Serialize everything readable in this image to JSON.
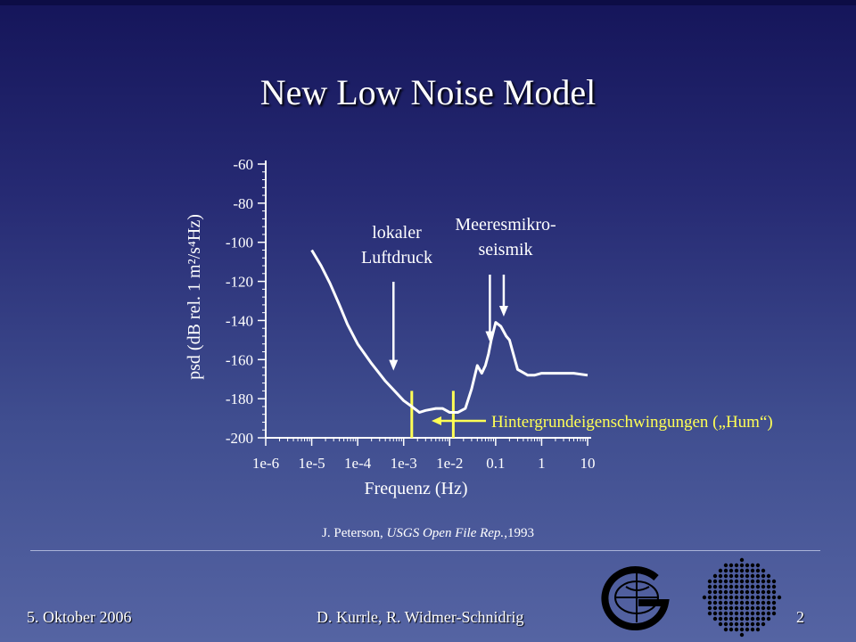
{
  "slide": {
    "title": "New Low Noise Model",
    "citation_author": "J. Peterson,",
    "citation_source": "USGS Open File Rep.",
    "citation_year": ",1993",
    "footer_date": "5. Oktober 2006",
    "footer_authors": "D. Kurrle, R. Widmer-Schnidrig",
    "footer_page": "2"
  },
  "chart_data": {
    "type": "line",
    "xscale": "log",
    "xlabel": "Frequenz (Hz)",
    "ylabel": "psd (dB rel. 1 m²/s⁴Hz)",
    "xlim": [
      1e-06,
      10
    ],
    "ylim": [
      -200,
      -60
    ],
    "xticks": [
      1e-06,
      1e-05,
      0.0001,
      0.001,
      0.01,
      0.1,
      1,
      10
    ],
    "xtick_labels": [
      "1e-6",
      "1e-5",
      "1e-4",
      "1e-3",
      "1e-2",
      "0.1",
      "1",
      "10"
    ],
    "yticks": [
      -60,
      -80,
      -100,
      -120,
      -140,
      -160,
      -180,
      -200
    ],
    "ytick_labels": [
      "-60",
      "-80",
      "-100",
      "-120",
      "-140",
      "-160",
      "-180",
      "-200"
    ],
    "grid": false,
    "series": [
      {
        "color": "#ffffff",
        "x": [
          1e-05,
          1.6e-05,
          2.5e-05,
          4e-05,
          6e-05,
          0.0001,
          0.0002,
          0.0004,
          0.001,
          0.0015,
          0.0022,
          0.003,
          0.005,
          0.007,
          0.01,
          0.015,
          0.022,
          0.03,
          0.04,
          0.05,
          0.06,
          0.07,
          0.08,
          0.1,
          0.13,
          0.17,
          0.2,
          0.3,
          0.5,
          0.7,
          1,
          2,
          5,
          10
        ],
        "y": [
          -104,
          -112,
          -121,
          -132,
          -142,
          -152,
          -162,
          -171,
          -181,
          -184,
          -187,
          -186,
          -185,
          -185,
          -187,
          -187,
          -185,
          -175,
          -163,
          -167,
          -163,
          -157,
          -150,
          -141,
          -143,
          -148,
          -150,
          -165,
          -168,
          -168,
          -167,
          -167,
          -167,
          -168
        ]
      }
    ],
    "annotations": {
      "luftdruck": {
        "lines": [
          "lokaler",
          "Luftdruck"
        ],
        "arrow_x": 0.0006,
        "arrow_y": -162
      },
      "mikroseismik": {
        "lines": [
          "Meeresmikro-",
          "seismik"
        ],
        "arrows": [
          {
            "x": 0.075,
            "y": -151
          },
          {
            "x": 0.15,
            "y": -138
          }
        ]
      },
      "hum": {
        "text": "Hintergrundeigenschwingungen („Hum“)",
        "band": [
          0.0015,
          0.012
        ],
        "color": "#ffff55"
      }
    }
  }
}
